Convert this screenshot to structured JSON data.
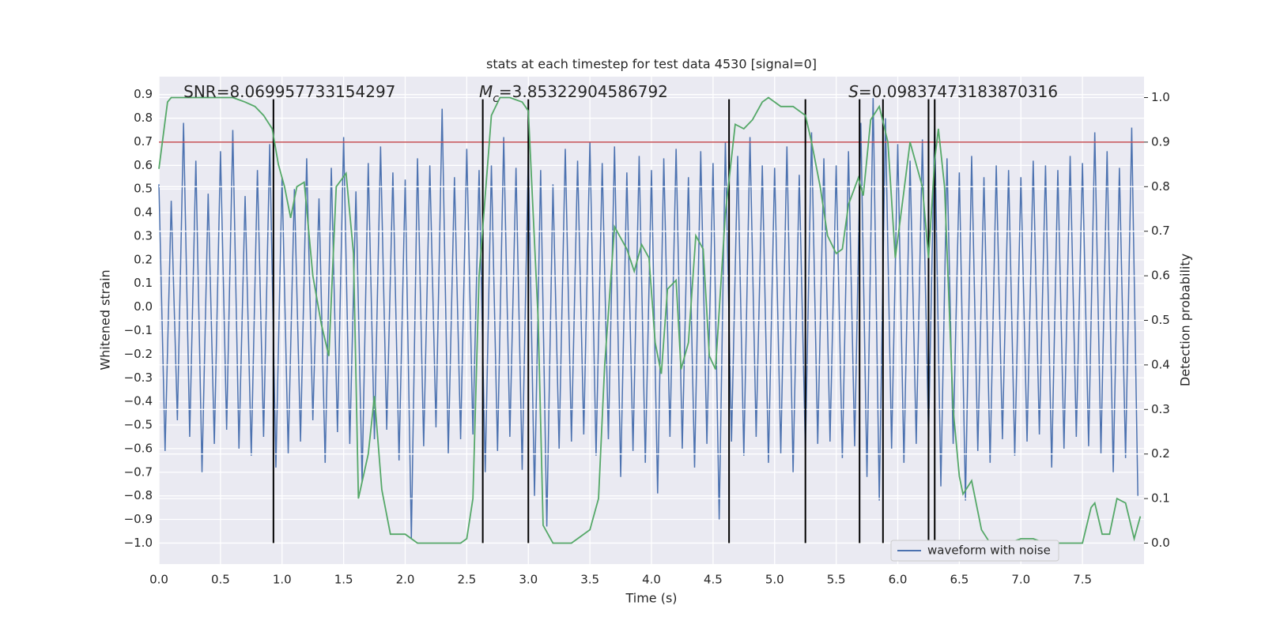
{
  "chart_data": {
    "type": "line",
    "title": "stats at each timestep for test data 4530 [signal=0]",
    "xlabel": "Time (s)",
    "ylabel": "Whitened strain",
    "y2label": "Detection probability",
    "xlim": [
      0,
      8.0
    ],
    "ylim": [
      -1.089,
      0.976
    ],
    "y2lim": [
      -0.047,
      1.047
    ],
    "xticks": [
      {
        "value": 0,
        "label": "0.0"
      },
      0.5,
      {
        "value": 1,
        "label": "1.0"
      },
      1.5,
      {
        "value": 2,
        "label": "2.0"
      },
      2.5,
      {
        "value": 3,
        "label": "3.0"
      },
      3.5,
      {
        "value": 4,
        "label": "4.0"
      },
      4.5,
      {
        "value": 5,
        "label": "5.0"
      },
      5.5,
      {
        "value": 6,
        "label": "6.0"
      },
      6.5,
      {
        "value": 7,
        "label": "7.0"
      },
      7.5
    ],
    "yticks": [
      {
        "value": -1,
        "label": "−1.0"
      },
      {
        "value": -0.9,
        "label": "−0.9"
      },
      {
        "value": -0.8,
        "label": "−0.8"
      },
      {
        "value": -0.7,
        "label": "−0.7"
      },
      {
        "value": -0.6,
        "label": "−0.6"
      },
      {
        "value": -0.5,
        "label": "−0.5"
      },
      {
        "value": -0.4,
        "label": "−0.4"
      },
      {
        "value": -0.3,
        "label": "−0.3"
      },
      {
        "value": -0.2,
        "label": "−0.2"
      },
      {
        "value": -0.1,
        "label": "−0.1"
      },
      {
        "value": 0,
        "label": "0.0"
      },
      0.1,
      0.2,
      0.3,
      0.4,
      0.5,
      0.6,
      0.7,
      0.8,
      0.9
    ],
    "y2ticks": [
      {
        "value": 0,
        "label": "0.0"
      },
      0.1,
      0.2,
      0.3,
      0.4,
      0.5,
      0.6,
      0.7,
      0.8,
      0.9,
      {
        "value": 1,
        "label": "1.0"
      }
    ],
    "grid": true,
    "legend": "lower right",
    "series": [
      {
        "name": "waveform with noise",
        "color": "#4c72b0",
        "x": [
          0,
          0.05,
          0.1,
          0.15,
          0.2,
          0.25,
          0.3,
          0.35,
          0.4,
          0.45,
          0.5,
          0.55,
          0.6,
          0.65,
          0.7,
          0.75,
          0.8,
          0.85,
          0.9,
          0.95,
          1,
          1.05,
          1.1,
          1.15,
          1.2,
          1.25,
          1.3,
          1.35,
          1.4,
          1.45,
          1.5,
          1.55,
          1.6,
          1.65,
          1.7,
          1.75,
          1.8,
          1.85,
          1.9,
          1.95,
          2,
          2.05,
          2.1,
          2.15,
          2.2,
          2.25,
          2.3,
          2.35,
          2.4,
          2.45,
          2.5,
          2.55,
          2.6,
          2.65,
          2.7,
          2.75,
          2.8,
          2.85,
          2.9,
          2.95,
          3,
          3.05,
          3.1,
          3.15,
          3.2,
          3.25,
          3.3,
          3.35,
          3.4,
          3.45,
          3.5,
          3.55,
          3.6,
          3.65,
          3.7,
          3.75,
          3.8,
          3.85,
          3.9,
          3.95,
          4,
          4.05,
          4.1,
          4.15,
          4.2,
          4.25,
          4.3,
          4.35,
          4.4,
          4.45,
          4.5,
          4.55,
          4.6,
          4.65,
          4.7,
          4.75,
          4.8,
          4.85,
          4.9,
          4.95,
          5,
          5.05,
          5.1,
          5.15,
          5.2,
          5.25,
          5.3,
          5.35,
          5.4,
          5.45,
          5.5,
          5.55,
          5.6,
          5.65,
          5.7,
          5.75,
          5.8,
          5.85,
          5.9,
          5.95,
          6,
          6.05,
          6.1,
          6.15,
          6.2,
          6.25,
          6.3,
          6.35,
          6.4,
          6.45,
          6.5,
          6.55,
          6.6,
          6.65,
          6.7,
          6.75,
          6.8,
          6.85,
          6.9,
          6.95,
          7,
          7.05,
          7.1,
          7.15,
          7.2,
          7.25,
          7.3,
          7.35,
          7.4,
          7.45,
          7.5,
          7.55,
          7.6,
          7.65,
          7.7,
          7.75,
          7.8,
          7.85,
          7.9,
          7.95
        ],
        "values": [
          0.52,
          -0.61,
          0.45,
          -0.48,
          0.78,
          -0.55,
          0.62,
          -0.7,
          0.48,
          -0.58,
          0.66,
          -0.52,
          0.75,
          -0.6,
          0.47,
          -0.63,
          0.58,
          -0.55,
          0.69,
          -0.68,
          0.55,
          -0.62,
          0.5,
          -0.57,
          0.63,
          -0.48,
          0.46,
          -0.66,
          0.59,
          -0.53,
          0.72,
          -0.58,
          0.49,
          -0.74,
          0.61,
          -0.56,
          0.68,
          -0.52,
          0.57,
          -0.65,
          0.54,
          -0.98,
          0.63,
          -0.59,
          0.6,
          -0.51,
          0.84,
          -0.62,
          0.55,
          -0.56,
          0.67,
          -0.54,
          0.58,
          -0.7,
          0.6,
          -0.61,
          0.72,
          -0.55,
          0.59,
          -0.69,
          0.65,
          -0.8,
          0.58,
          -0.93,
          0.52,
          -0.6,
          0.67,
          -0.57,
          0.62,
          -0.54,
          0.7,
          -0.63,
          0.61,
          -0.56,
          0.68,
          -0.72,
          0.57,
          -0.61,
          0.64,
          -0.66,
          0.58,
          -0.79,
          0.63,
          -0.55,
          0.67,
          -0.6,
          0.55,
          -0.68,
          0.66,
          -0.58,
          0.61,
          -0.9,
          0.7,
          -0.57,
          0.64,
          -0.63,
          0.72,
          -0.55,
          0.6,
          -0.66,
          0.59,
          -0.62,
          0.68,
          -0.7,
          0.56,
          -0.61,
          0.74,
          -0.58,
          0.63,
          -0.57,
          0.6,
          -0.64,
          0.66,
          -0.59,
          0.78,
          -0.72,
          0.89,
          -0.82,
          0.8,
          -0.6,
          0.69,
          -0.66,
          0.62,
          -0.58,
          0.71,
          -0.55,
          0.77,
          -0.76,
          0.63,
          -0.58,
          0.57,
          -0.82,
          0.64,
          -0.61,
          0.55,
          -0.66,
          0.6,
          -0.56,
          0.58,
          -0.63,
          0.55,
          -0.57,
          0.62,
          -0.54,
          0.6,
          -0.68,
          0.58,
          -0.6,
          0.64,
          -0.55,
          0.61,
          -0.59,
          0.74,
          -0.62,
          0.66,
          -0.7,
          0.59,
          -0.64,
          0.76,
          -0.8
        ]
      },
      {
        "color": "#55a868",
        "axis": "y2",
        "x": [
          0,
          0.07,
          0.1,
          0.6,
          0.7,
          0.78,
          0.85,
          0.92,
          0.97,
          1.02,
          1.07,
          1.12,
          1.18,
          1.25,
          1.32,
          1.38,
          1.44,
          1.52,
          1.58,
          1.62,
          1.7,
          1.75,
          1.81,
          1.88,
          2,
          2.1,
          2.2,
          2.45,
          2.5,
          2.55,
          2.6,
          2.7,
          2.77,
          2.85,
          2.95,
          3,
          3.08,
          3.12,
          3.2,
          3.35,
          3.4,
          3.5,
          3.57,
          3.62,
          3.7,
          3.8,
          3.86,
          3.92,
          3.98,
          4.03,
          4.08,
          4.13,
          4.2,
          4.24,
          4.3,
          4.36,
          4.42,
          4.47,
          4.52,
          4.6,
          4.68,
          4.75,
          4.82,
          4.9,
          4.95,
          5,
          5.05,
          5.15,
          5.25,
          5.3,
          5.37,
          5.43,
          5.5,
          5.55,
          5.6,
          5.68,
          5.72,
          5.78,
          5.85,
          5.92,
          5.98,
          6.05,
          6.1,
          6.2,
          6.25,
          6.3,
          6.33,
          6.38,
          6.45,
          6.5,
          6.53,
          6.6,
          6.68,
          6.75,
          6.9,
          7,
          7.1,
          7.2,
          7.4,
          7.5,
          7.57,
          7.6,
          7.66,
          7.72,
          7.78,
          7.85,
          7.92,
          7.97
        ],
        "values": [
          0.84,
          0.99,
          1.0,
          1.0,
          0.99,
          0.98,
          0.96,
          0.93,
          0.85,
          0.8,
          0.73,
          0.8,
          0.81,
          0.6,
          0.49,
          0.42,
          0.8,
          0.83,
          0.65,
          0.1,
          0.2,
          0.33,
          0.12,
          0.02,
          0.02,
          0.0,
          0.0,
          0.0,
          0.01,
          0.1,
          0.6,
          0.96,
          1.0,
          1.0,
          0.99,
          0.97,
          0.5,
          0.04,
          0.0,
          0.0,
          0.01,
          0.03,
          0.1,
          0.4,
          0.71,
          0.66,
          0.61,
          0.67,
          0.64,
          0.45,
          0.38,
          0.57,
          0.59,
          0.39,
          0.45,
          0.69,
          0.66,
          0.42,
          0.39,
          0.74,
          0.94,
          0.93,
          0.95,
          0.99,
          1.0,
          0.99,
          0.98,
          0.98,
          0.96,
          0.9,
          0.8,
          0.69,
          0.65,
          0.66,
          0.76,
          0.82,
          0.78,
          0.95,
          0.98,
          0.9,
          0.64,
          0.79,
          0.9,
          0.8,
          0.64,
          0.86,
          0.93,
          0.8,
          0.3,
          0.15,
          0.11,
          0.14,
          0.03,
          0.0,
          0.0,
          0.01,
          0.01,
          0.0,
          0.0,
          0.0,
          0.08,
          0.09,
          0.02,
          0.02,
          0.1,
          0.09,
          0.01,
          0.06
        ]
      }
    ],
    "vlines": {
      "x": [
        0.93,
        2.63,
        3.0,
        4.63,
        5.25,
        5.69,
        5.88,
        6.25,
        6.3
      ],
      "ymin": -1.0,
      "ymax": 0.88,
      "color": "#000000"
    },
    "hline": {
      "y": 0.9,
      "axis": "y2",
      "color": "#c44e52"
    },
    "annotations": [
      {
        "text": "SNR=8.069957733154297"
      },
      {
        "symbol": "M",
        "sub": "c",
        "text": "=3.85322904586792"
      },
      {
        "symbol": "S",
        "text": "=0.09837473183870316"
      }
    ]
  }
}
